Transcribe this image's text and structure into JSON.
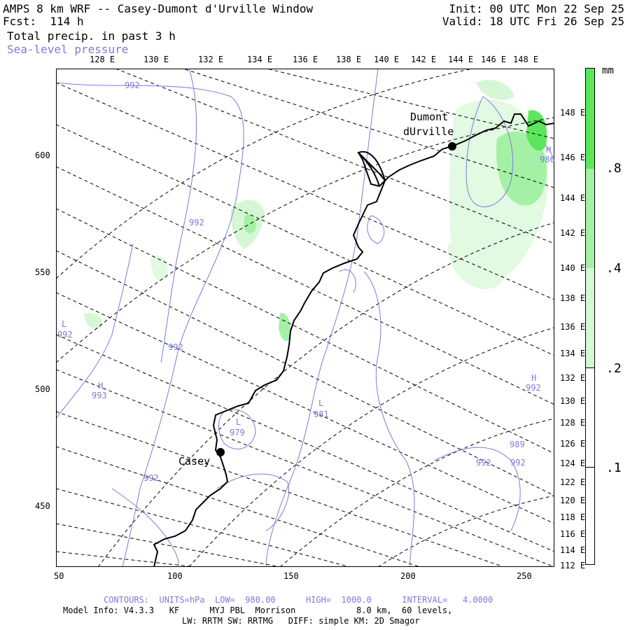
{
  "header": {
    "title": "AMPS 8 km WRF -- Casey-Dumont d'Urville Window",
    "fcst": "Fcst:  114 h",
    "field": "Total precip. in past 3 h",
    "contour_field": "Sea-level pressure",
    "init": "Init: 00 UTC Mon 22 Sep 25",
    "valid": "Valid: 18 UTC Fri 26 Sep 25"
  },
  "map": {
    "top_lon_labels": [
      "128 E",
      "130 E",
      "132 E",
      "134 E",
      "136 E",
      "138 E",
      "140 E",
      "142 E",
      "144 E",
      "146 E",
      "148 E"
    ],
    "right_lon_labels": [
      "148 E",
      "146 E",
      "144 E",
      "142 E",
      "140 E",
      "138 E",
      "136 E",
      "134 E",
      "132 E",
      "130 E",
      "128 E",
      "126 E",
      "124 E",
      "122 E",
      "120 E",
      "118 E",
      "116 E",
      "114 E",
      "112 E"
    ],
    "x_ticks": [
      "50",
      "100",
      "150",
      "200",
      "250"
    ],
    "y_ticks": [
      "600",
      "550",
      "500",
      "450"
    ],
    "stations": [
      {
        "name": "Dumont",
        "name2": "dUrville"
      },
      {
        "name": "Casey"
      }
    ],
    "pressure_labels": [
      {
        "text": "992"
      },
      {
        "text": "992"
      },
      {
        "text": "L"
      },
      {
        "text": "992"
      },
      {
        "text": "992"
      },
      {
        "text": "H"
      },
      {
        "text": "993"
      },
      {
        "text": "L"
      },
      {
        "text": "979"
      },
      {
        "text": "L"
      },
      {
        "text": "981"
      },
      {
        "text": "992"
      },
      {
        "text": "H"
      },
      {
        "text": "992"
      },
      {
        "text": "989"
      },
      {
        "text": "992"
      },
      {
        "text": "992"
      },
      {
        "text": "H"
      },
      {
        "text": "986"
      }
    ]
  },
  "colorbar": {
    "unit": "mm",
    "labels": [
      ".8",
      ".4",
      ".2",
      ".1"
    ],
    "colors": [
      "#5ce65c",
      "#a4f0a4",
      "#d6f7d6",
      "#ffffff"
    ]
  },
  "footer": {
    "contours": "CONTOURS:  UNITS=hPa  LOW=  980.00      HIGH=  1000.0      INTERVAL=   4.0000",
    "model_line1": "Model Info: V4.3.3   KF      MYJ PBL  Morrison            8.0 km,  60 levels,",
    "model_line2": "LW: RRTM SW: RRTMG   DIFF: simple KM: 2D Smagor"
  }
}
